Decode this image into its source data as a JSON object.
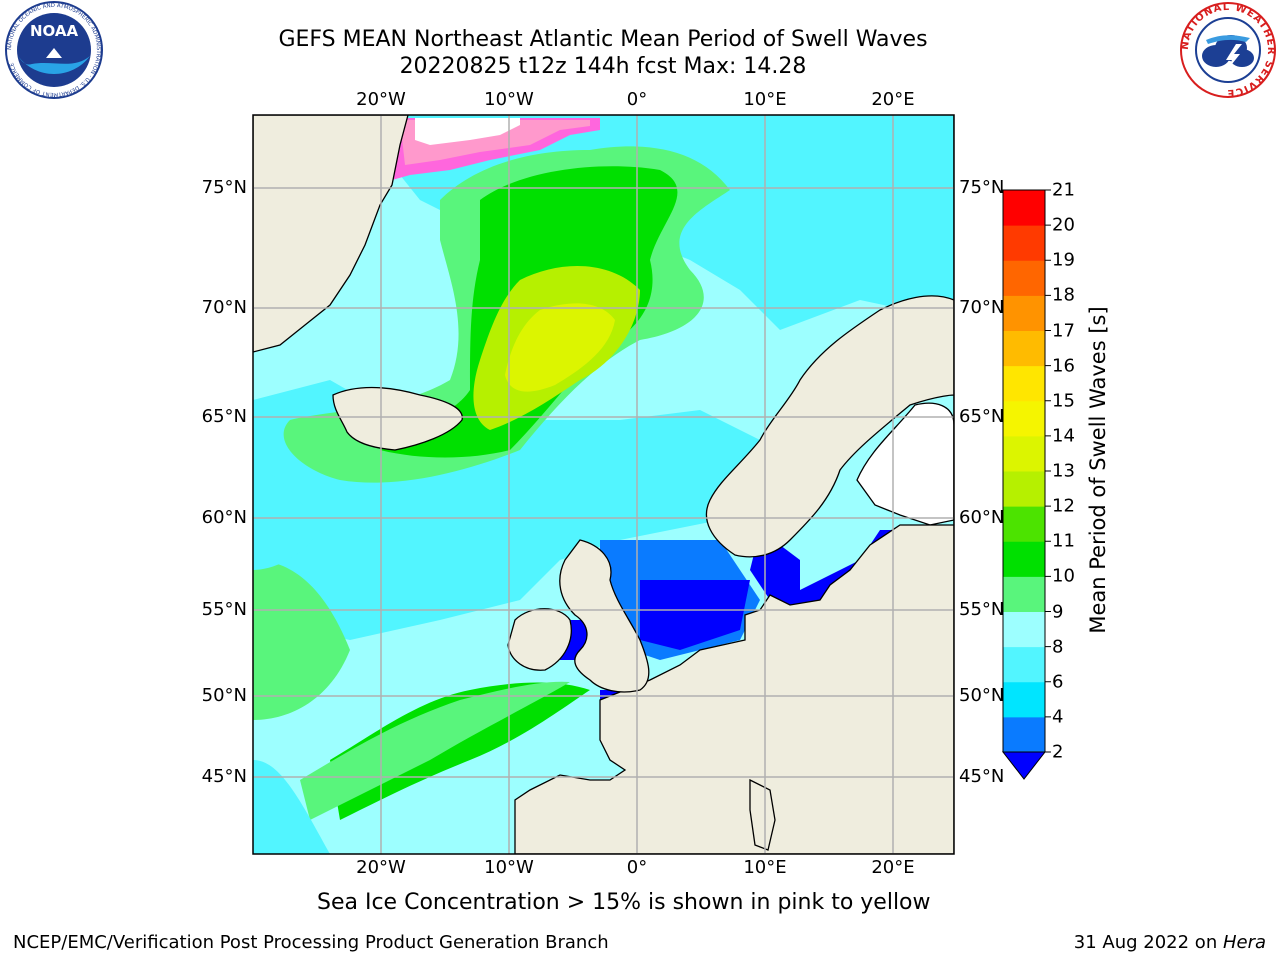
{
  "title": {
    "line1": "GEFS MEAN Northeast Atlantic Mean Period of Swell Waves",
    "line2": "20220825 t12z 144h fcst   Max: 14.28"
  },
  "logos": {
    "noaa": {
      "text": "NOAA",
      "icon": "noaa-emblem-icon",
      "ring_text": "NATIONAL OCEANIC AND ATMOSPHERIC ADMINISTRATION · U.S. DEPARTMENT OF COMMERCE"
    },
    "nws": {
      "icon": "nws-emblem-icon",
      "ring_text": "NATIONAL WEATHER SERVICE"
    }
  },
  "map": {
    "region": "Northeast Atlantic",
    "variable": "Mean Period of Swell Waves",
    "lon_ticks": [
      "20°W",
      "10°W",
      "0°",
      "10°E",
      "20°E"
    ],
    "lat_ticks": [
      "75°N",
      "70°N",
      "65°N",
      "60°N",
      "55°N",
      "50°N",
      "45°N"
    ],
    "extent": {
      "lon": [
        -30,
        25
      ],
      "lat": [
        41,
        78
      ]
    },
    "land_color": "#efedde",
    "grid_color": "#b0b0b0"
  },
  "colorbar": {
    "title": "Mean Period of Swell Waves [s]",
    "levels": [
      "2",
      "4",
      "6",
      "8",
      "9",
      "10",
      "11",
      "12",
      "13",
      "14",
      "15",
      "16",
      "17",
      "18",
      "19",
      "20",
      "21"
    ],
    "colors": [
      "#0a7bff",
      "#00e5ff",
      "#52f5ff",
      "#9dffff",
      "#59f57c",
      "#00e000",
      "#4ce300",
      "#b6f000",
      "#dcf500",
      "#f5f500",
      "#ffe600",
      "#ffbb00",
      "#ff9300",
      "#ff6600",
      "#ff3a00",
      "#ff0000"
    ],
    "under_color": "#0000ff"
  },
  "caption": "Sea Ice Concentration > 15% is shown in pink to yellow",
  "footer": {
    "left": "NCEP/EMC/Verification Post Processing Product Generation Branch",
    "right_prefix": "31 Aug 2022 on ",
    "right_host": "Hera"
  }
}
